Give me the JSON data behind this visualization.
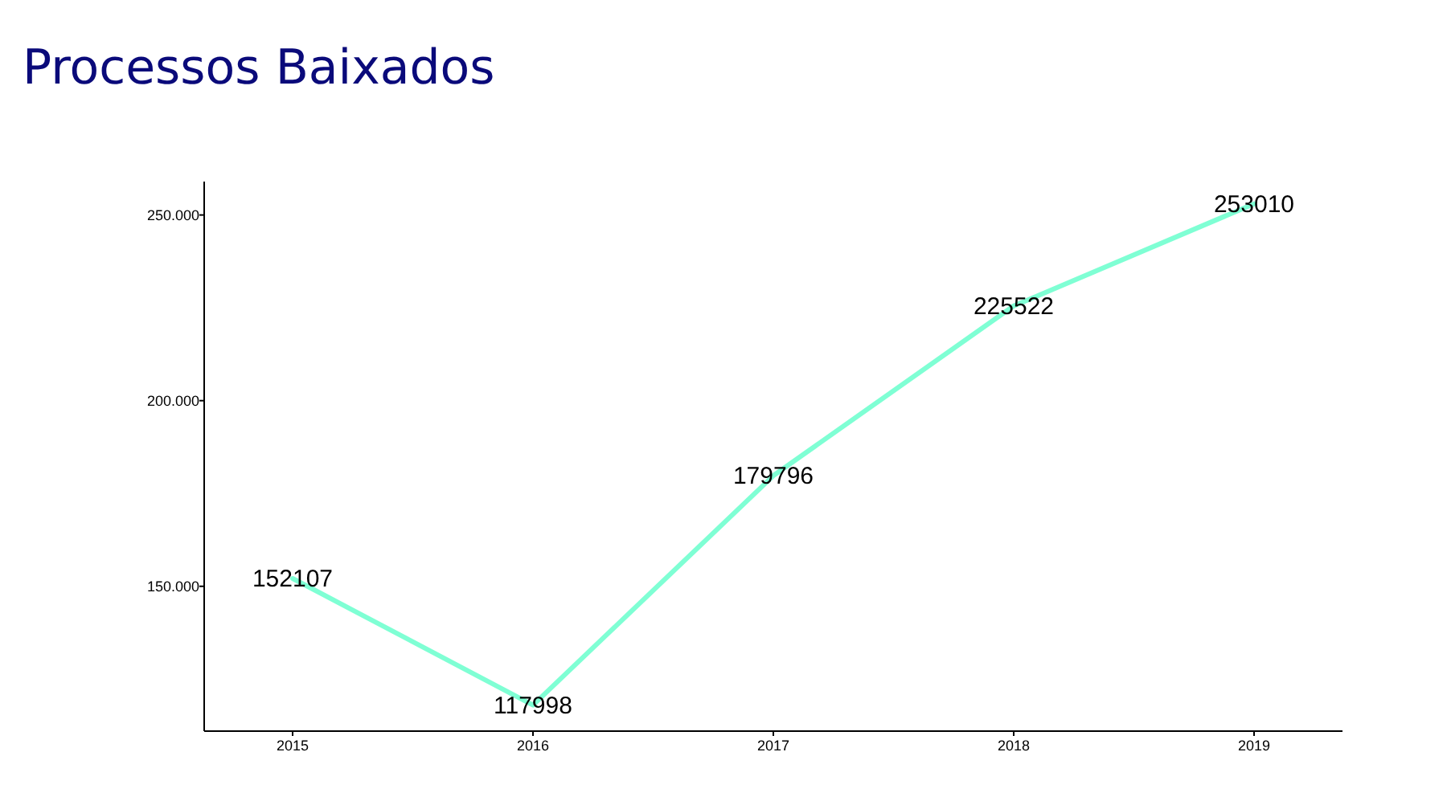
{
  "chart_data": {
    "type": "line",
    "title": "Processos Baixados",
    "categories": [
      "2015",
      "2016",
      "2017",
      "2018",
      "2019"
    ],
    "series": [
      {
        "color": "#7fffd4",
        "values": [
          152107,
          117998,
          179796,
          225522,
          253010
        ]
      }
    ],
    "ylim": [
      111000,
      259000
    ],
    "yticks": [
      {
        "value": 150000,
        "label": "150.000"
      },
      {
        "value": 200000,
        "label": "200.000"
      },
      {
        "value": 250000,
        "label": "250.000"
      }
    ],
    "data_labels": true,
    "marker": "none",
    "line_style": "solid"
  }
}
